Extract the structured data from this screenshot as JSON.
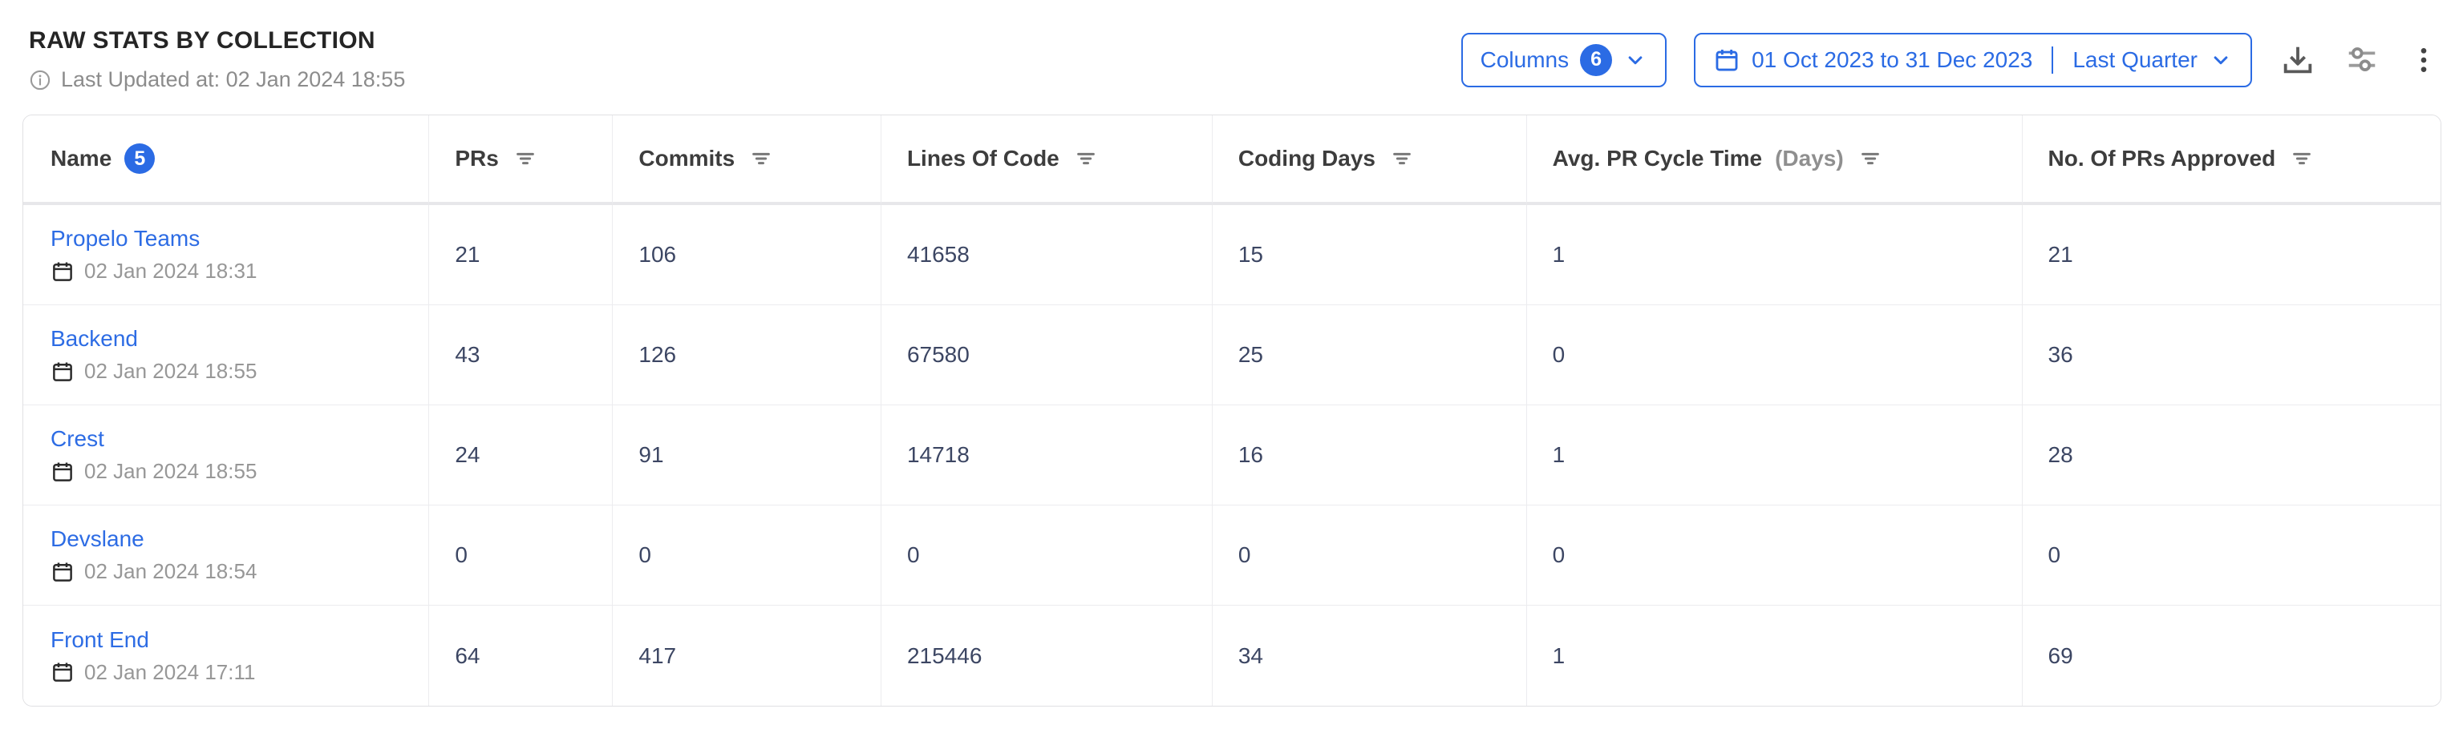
{
  "header": {
    "title": "RAW STATS BY COLLECTION",
    "last_updated": "Last Updated at: 02 Jan 2024 18:55"
  },
  "toolbar": {
    "columns_label": "Columns",
    "columns_count": "6",
    "date_range": "01 Oct 2023 to 31 Dec 2023",
    "date_preset": "Last Quarter",
    "icons": [
      "download-icon",
      "sliders-icon",
      "kebab-menu-icon"
    ]
  },
  "table": {
    "name_header": "Name",
    "name_badge_count": "5",
    "columns": [
      {
        "label": "PRs",
        "suffix": ""
      },
      {
        "label": "Commits",
        "suffix": ""
      },
      {
        "label": "Lines Of Code",
        "suffix": ""
      },
      {
        "label": "Coding Days",
        "suffix": ""
      },
      {
        "label": "Avg. PR Cycle Time",
        "suffix": "(Days)"
      },
      {
        "label": "No. Of PRs Approved",
        "suffix": ""
      }
    ],
    "rows": [
      {
        "name": "Propelo Teams",
        "updated": "02 Jan 2024 18:31",
        "prs": "21",
        "commits": "106",
        "lines_of_code": "41658",
        "coding_days": "15",
        "avg_pr_cycle_time": "1",
        "prs_approved": "21"
      },
      {
        "name": "Backend",
        "updated": "02 Jan 2024 18:55",
        "prs": "43",
        "commits": "126",
        "lines_of_code": "67580",
        "coding_days": "25",
        "avg_pr_cycle_time": "0",
        "prs_approved": "36"
      },
      {
        "name": "Crest",
        "updated": "02 Jan 2024 18:55",
        "prs": "24",
        "commits": "91",
        "lines_of_code": "14718",
        "coding_days": "16",
        "avg_pr_cycle_time": "1",
        "prs_approved": "28"
      },
      {
        "name": "Devslane",
        "updated": "02 Jan 2024 18:54",
        "prs": "0",
        "commits": "0",
        "lines_of_code": "0",
        "coding_days": "0",
        "avg_pr_cycle_time": "0",
        "prs_approved": "0"
      },
      {
        "name": "Front End",
        "updated": "02 Jan 2024 17:11",
        "prs": "64",
        "commits": "417",
        "lines_of_code": "215446",
        "coding_days": "34",
        "avg_pr_cycle_time": "1",
        "prs_approved": "69"
      }
    ]
  },
  "colors": {
    "accent_blue": "#2b6be4",
    "number_text": "#3c4663",
    "muted_text": "#8c8c8c",
    "border": "#ececef"
  }
}
